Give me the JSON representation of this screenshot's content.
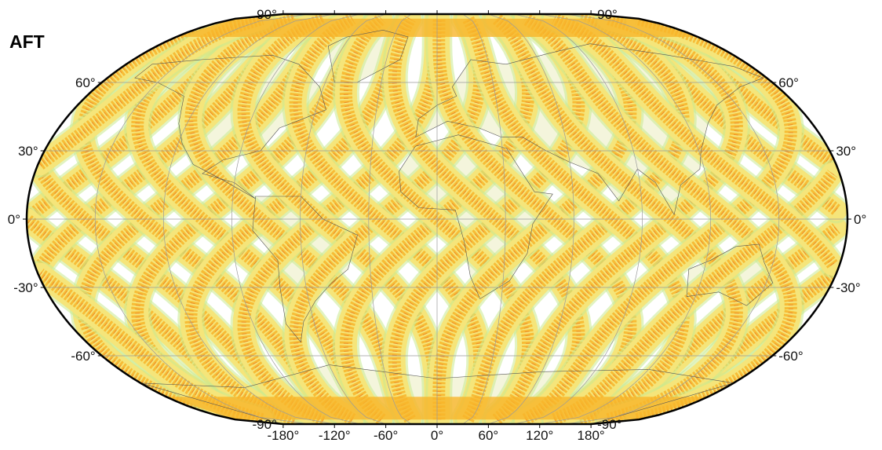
{
  "panel_title": "AFT",
  "map": {
    "projection": "Winkel Tripel (global)",
    "lon_range": [
      -180,
      180
    ],
    "lat_range": [
      -90,
      90
    ],
    "graticule_lon_step": 30,
    "graticule_lat_step": 30,
    "swath_count": 14,
    "swath_orbit_inclination_deg": 98,
    "coastlines": true,
    "colors": {
      "background": "#ffffff",
      "land": "#f4f5dc",
      "swath_low": "#f5e57a",
      "swath_mid": "#f7b52a",
      "swath_high": "#e3521a",
      "swath_edge": "#c9e98f",
      "graticule": "#9a9a9a",
      "coast": "#555555",
      "frame": "#000000"
    }
  },
  "axes": {
    "lat_labels": [
      "90°",
      "60°",
      "30°",
      "0°",
      "-30°",
      "-60°",
      "-90°"
    ],
    "lat_values": [
      90,
      60,
      30,
      0,
      -30,
      -60,
      -90
    ],
    "lon_labels": [
      "-180°",
      "-120°",
      "-60°",
      "0°",
      "60°",
      "120°",
      "180°"
    ],
    "lon_values": [
      -180,
      -120,
      -60,
      0,
      60,
      120,
      180
    ]
  }
}
